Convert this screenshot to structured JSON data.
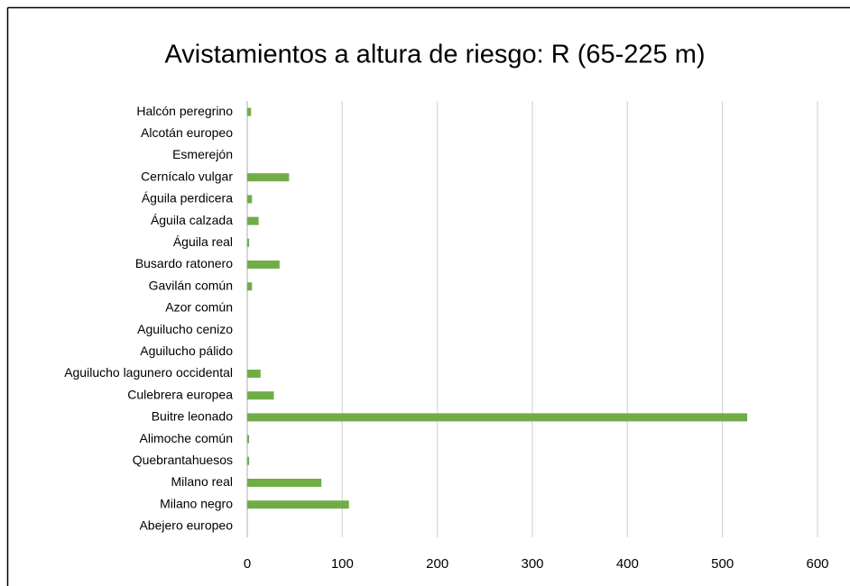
{
  "chart_data": {
    "type": "bar",
    "orientation": "horizontal",
    "title": "Avistamientos a altura de riesgo: R (65-225 m)",
    "categories": [
      "Halcón peregrino",
      "Alcotán europeo",
      "Esmerejón",
      "Cernícalo vulgar",
      "Águila perdicera",
      "Águila calzada",
      "Águila real",
      "Busardo ratonero",
      "Gavilán común",
      "Azor común",
      "Aguilucho cenizo",
      "Aguilucho pálido",
      "Aguilucho lagunero occidental",
      "Culebrera europea",
      "Buitre leonado",
      "Alimoche común",
      "Quebrantahuesos",
      "Milano real",
      "Milano negro",
      "Abejero europeo"
    ],
    "values": [
      4,
      0,
      0,
      44,
      5,
      12,
      2,
      34,
      5,
      0,
      0,
      0,
      14,
      28,
      526,
      2,
      2,
      78,
      107,
      0
    ],
    "color": "#70ad47",
    "xlim": [
      0,
      600
    ],
    "xticks": [
      0,
      100,
      200,
      300,
      400,
      500,
      600
    ],
    "grid": true
  }
}
